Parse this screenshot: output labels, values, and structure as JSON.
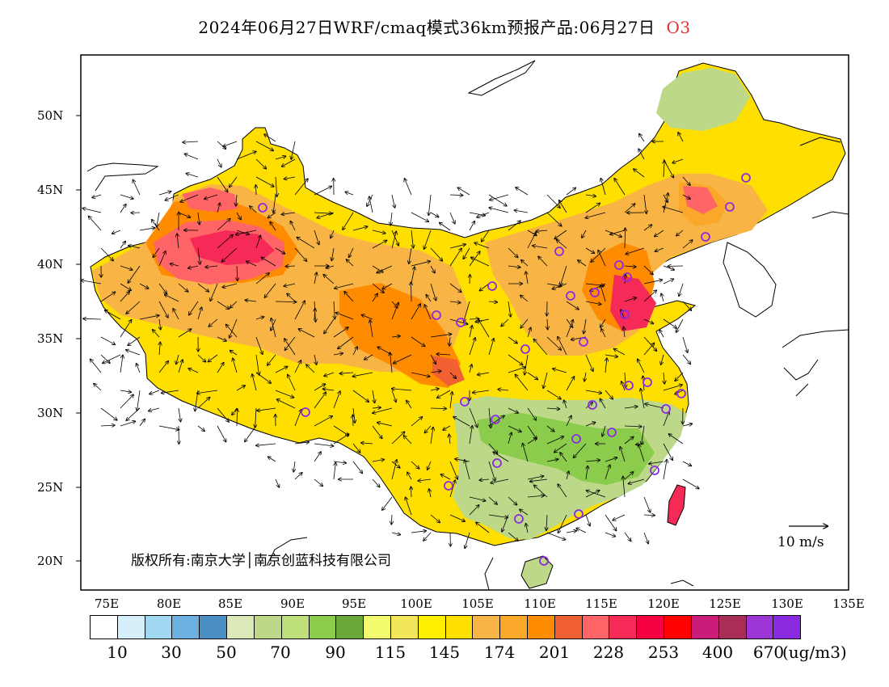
{
  "header": {
    "title": "2024年06月27日WRF/cmaq模式36km预报产品:06月27日",
    "pollutant": "O3",
    "pollutant_color": "#e03030"
  },
  "axes": {
    "lat_labels": [
      "50N",
      "45N",
      "40N",
      "35N",
      "30N",
      "25N",
      "20N"
    ],
    "lon_labels": [
      "75E",
      "80E",
      "85E",
      "90E",
      "95E",
      "100E",
      "105E",
      "110E",
      "115E",
      "120E",
      "125E",
      "130E",
      "135E"
    ]
  },
  "legend": {
    "colors": [
      "#ffffff",
      "#d6effa",
      "#a0d8f2",
      "#6cb1df",
      "#4a8fc4",
      "#dbe9b8",
      "#bcd888",
      "#bfe079",
      "#8ccc4c",
      "#6aa83a",
      "#f2fa6e",
      "#f2e65a",
      "#fff000",
      "#ffdf00",
      "#f8b546",
      "#faa72a",
      "#ff8c00",
      "#f06030",
      "#ff6466",
      "#f52a56",
      "#f50040",
      "#ff0000",
      "#c81c78",
      "#a82e56",
      "#9c36d4",
      "#8a2be2"
    ],
    "labels": [
      "10",
      "30",
      "50",
      "70",
      "90",
      "115",
      "145",
      "174",
      "201",
      "228",
      "253",
      "400",
      "670"
    ],
    "unit": "(ug/m3)"
  },
  "annotations": {
    "copyright": "版权所有:南京大学│南京创蓝科技有限公司",
    "wind_reference": "10 m/s"
  },
  "colors": {
    "background": "#ffffff",
    "border": "#000000",
    "station_marker": "#8a2be2",
    "water": "#ffffff"
  },
  "map": {
    "type": "O3 concentration field with wind vectors",
    "projection": "lat-lon",
    "lon_range": [
      73,
      135
    ],
    "lat_range": [
      18,
      54
    ]
  }
}
